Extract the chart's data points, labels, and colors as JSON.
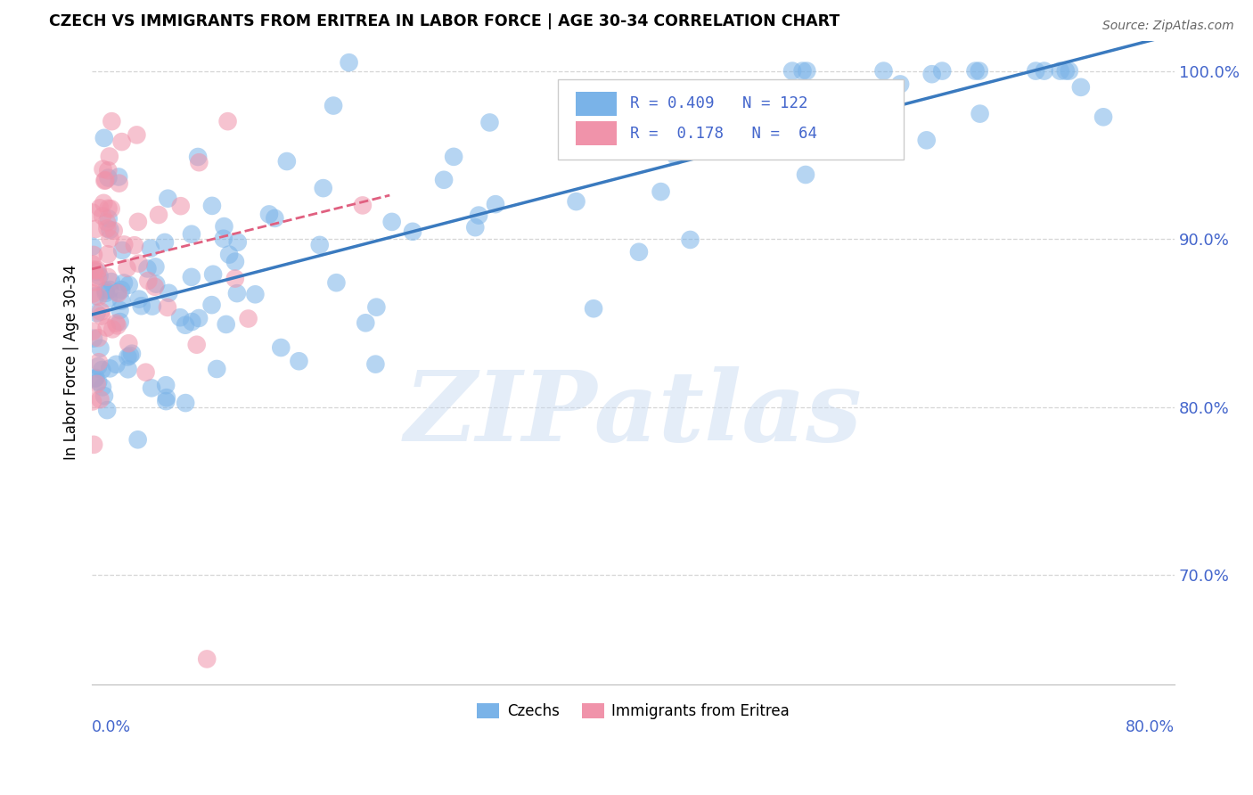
{
  "title": "CZECH VS IMMIGRANTS FROM ERITREA IN LABOR FORCE | AGE 30-34 CORRELATION CHART",
  "source_text": "Source: ZipAtlas.com",
  "ylabel": "In Labor Force | Age 30-34",
  "y_ticks": [
    0.7,
    0.8,
    0.9,
    1.0
  ],
  "y_tick_labels": [
    "70.0%",
    "80.0%",
    "90.0%",
    "100.0%"
  ],
  "x_min": 0.0,
  "x_max": 0.8,
  "y_min": 0.635,
  "y_max": 1.018,
  "czechs_color": "#7ab3e8",
  "eritrea_color": "#f093aa",
  "trendline_czech_color": "#3a7abf",
  "trendline_eritrea_color": "#e06080",
  "watermark_color": "#c5d8f0",
  "watermark_text": "ZIPatlas",
  "legend_label_czechs": "Czechs",
  "legend_label_eritrea": "Immigrants from Eritrea",
  "tick_color": "#4466cc",
  "grid_color": "#cccccc",
  "legend_R_color": "#4466cc"
}
